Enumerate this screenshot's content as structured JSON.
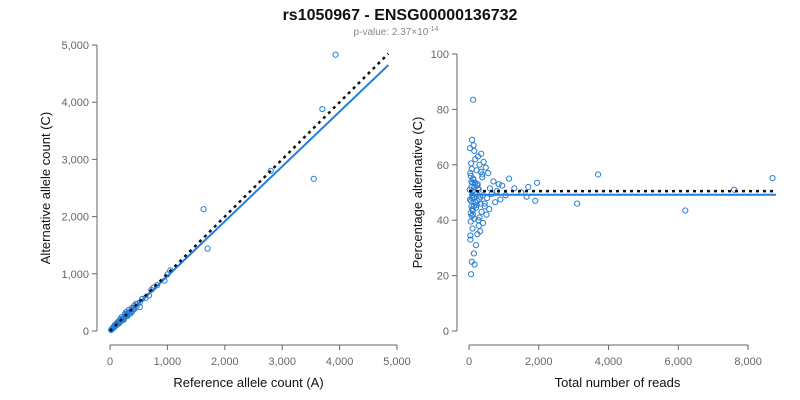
{
  "figure": {
    "title": "rs1050967 - ENSG00000136732",
    "subtitle_prefix": "p-value: 2.37×10",
    "subtitle_exponent": "-14"
  },
  "colors": {
    "points": "#2a7fd0",
    "fit": "#1f7fe0",
    "expected": "#111111"
  },
  "chart_data": [
    {
      "type": "scatter",
      "xlabel": "Reference allele count (A)",
      "ylabel": "Alternative allele count (C)",
      "xlim": [
        0,
        5000
      ],
      "ylim": [
        0,
        5000
      ],
      "xticks": [
        "0",
        "1,000",
        "2,000",
        "3,000",
        "4,000",
        "5,000"
      ],
      "yticks": [
        "0",
        "1,000",
        "2,000",
        "3,000",
        "4,000",
        "5,000"
      ],
      "xtick_values": [
        0,
        1000,
        2000,
        3000,
        4000,
        5000
      ],
      "ytick_values": [
        0,
        1000,
        2000,
        3000,
        4000,
        5000
      ],
      "grid": false,
      "lines": {
        "fit": {
          "x": [
            0,
            4850
          ],
          "y": [
            0,
            4650
          ]
        },
        "expected": {
          "x": [
            0,
            4850
          ],
          "y": [
            0,
            4850
          ]
        }
      },
      "points": {
        "x": [
          3930,
          3700,
          3550,
          2800,
          1630,
          1700,
          1050,
          1000,
          950,
          820,
          760,
          720,
          680,
          620,
          560,
          520,
          480,
          460,
          420,
          400,
          380,
          360,
          340,
          320,
          300,
          290,
          280,
          260,
          250,
          240,
          230,
          220,
          210,
          200,
          190,
          180,
          170,
          160,
          150,
          140,
          130,
          120,
          110,
          100,
          90,
          80,
          70,
          60,
          50,
          40,
          30,
          20,
          520,
          450,
          380,
          330,
          300,
          260,
          220,
          180,
          150,
          120,
          100,
          80,
          60,
          420,
          350,
          280,
          240,
          200,
          170,
          140,
          110,
          90
        ],
        "y": [
          4830,
          3880,
          2660,
          2800,
          2130,
          1440,
          1060,
          990,
          880,
          800,
          760,
          720,
          620,
          580,
          560,
          500,
          480,
          420,
          440,
          380,
          400,
          340,
          330,
          310,
          290,
          300,
          260,
          250,
          240,
          230,
          210,
          215,
          200,
          190,
          185,
          170,
          165,
          150,
          140,
          135,
          120,
          115,
          105,
          95,
          90,
          75,
          65,
          55,
          50,
          40,
          28,
          18,
          420,
          470,
          330,
          370,
          260,
          300,
          190,
          210,
          130,
          140,
          90,
          95,
          70,
          380,
          300,
          330,
          200,
          240,
          150,
          160,
          100,
          110
        ]
      }
    },
    {
      "type": "scatter",
      "xlabel": "Total number of reads",
      "ylabel": "Percentage alternative (C)",
      "xlim": [
        0,
        8800
      ],
      "ylim": [
        0,
        100
      ],
      "xticks": [
        "0",
        "2,000",
        "4,000",
        "6,000",
        "8,000"
      ],
      "yticks": [
        "0",
        "20",
        "40",
        "60",
        "80",
        "100"
      ],
      "xtick_values": [
        0,
        2000,
        4000,
        6000,
        8000
      ],
      "ytick_values": [
        0,
        20,
        40,
        60,
        80,
        100
      ],
      "grid": false,
      "lines": {
        "fit": {
          "x": [
            0,
            8800
          ],
          "y": [
            49.2,
            49.2
          ]
        },
        "expected": {
          "x": [
            0,
            8800
          ],
          "y": [
            50.5,
            50.5
          ]
        }
      },
      "points": {
        "x": [
          8700,
          7600,
          6200,
          3700,
          3100,
          1950,
          1900,
          1700,
          1650,
          1500,
          1300,
          1150,
          1050,
          950,
          900,
          850,
          800,
          750,
          700,
          650,
          600,
          580,
          550,
          520,
          500,
          480,
          450,
          420,
          400,
          380,
          360,
          340,
          320,
          300,
          280,
          260,
          240,
          220,
          200,
          180,
          160,
          150,
          140,
          130,
          120,
          110,
          100,
          90,
          80,
          70,
          60,
          50,
          40,
          30,
          20,
          350,
          300,
          250,
          200,
          150,
          120,
          100,
          80,
          60,
          450,
          380,
          320,
          270,
          230,
          190,
          170,
          130,
          110,
          90,
          70,
          50,
          300,
          260,
          220,
          180,
          140,
          110,
          90,
          70,
          50,
          40,
          400,
          330,
          280,
          240,
          210,
          160,
          140,
          100,
          80,
          60,
          40,
          30
        ],
        "y": [
          55.2,
          51.0,
          43.5,
          56.5,
          46.0,
          53.5,
          47.0,
          52.0,
          48.5,
          50.0,
          51.5,
          55.0,
          49.0,
          52.5,
          47.5,
          53.0,
          50.5,
          46.5,
          54.0,
          49.5,
          51.5,
          44.0,
          57.0,
          48.0,
          42.0,
          59.0,
          46.0,
          61.0,
          39.0,
          55.5,
          43.0,
          57.5,
          36.0,
          60.0,
          38.0,
          63.0,
          35.0,
          58.0,
          31.0,
          62.0,
          24.0,
          65.0,
          28.0,
          67.0,
          83.5,
          42.0,
          37.0,
          69.0,
          25.0,
          45.0,
          20.5,
          56.0,
          33.0,
          47.5,
          51.0,
          64.0,
          41.0,
          53.0,
          44.5,
          40.5,
          55.0,
          49.0,
          58.5,
          47.0,
          45.0,
          56.5,
          48.5,
          40.0,
          52.5,
          46.5,
          50.0,
          54.5,
          43.5,
          48.0,
          52.0,
          39.5,
          47.5,
          51.5,
          45.5,
          53.5,
          48.0,
          50.5,
          44.0,
          54.0,
          42.5,
          57.0,
          49.0,
          46.0,
          51.0,
          47.0,
          49.5,
          52.0,
          45.0,
          53.5,
          41.5,
          60.5,
          34.5,
          66.0
        ]
      }
    }
  ]
}
